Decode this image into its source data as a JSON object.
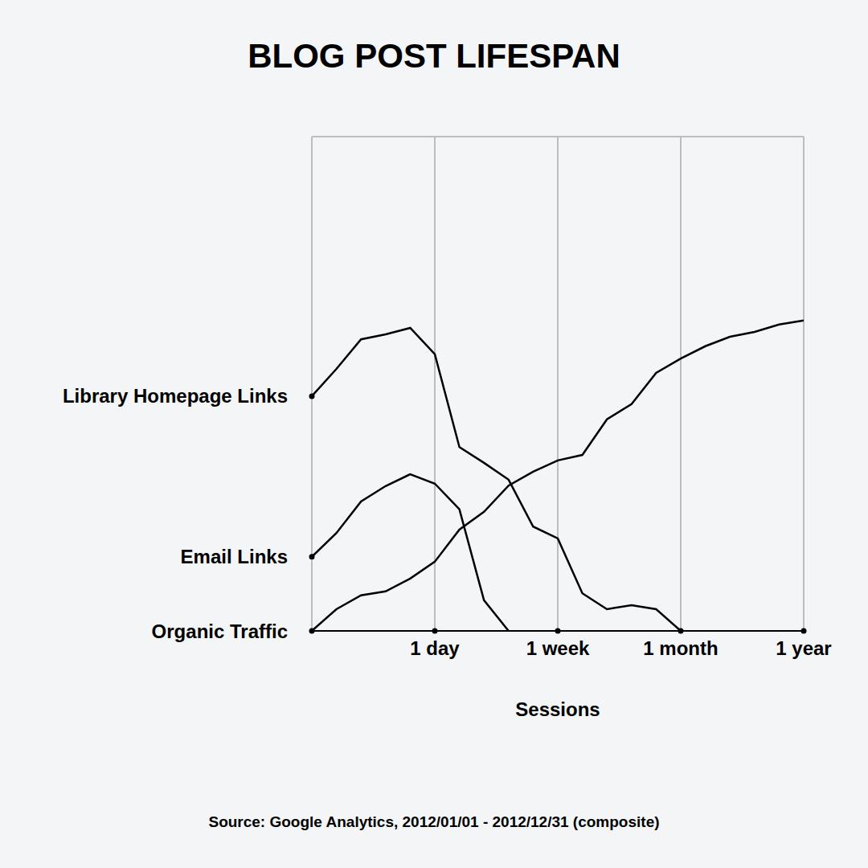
{
  "chart_data": {
    "type": "line",
    "title": "BLOG POST LIFESPAN",
    "x_label": "Sessions",
    "source": "Source: Google Analytics, 2012/01/01 - 2012/12/31 (composite)",
    "x": [
      0,
      0.2,
      0.4,
      0.6,
      0.8,
      1,
      1.2,
      1.4,
      1.6,
      1.8,
      2,
      2.2,
      2.4,
      2.6,
      2.8,
      3,
      3.2,
      3.4,
      3.6,
      3.8,
      4
    ],
    "xlim": [
      0,
      4
    ],
    "xticks": [
      {
        "value": 1,
        "label": "1 day"
      },
      {
        "value": 2,
        "label": "1 week"
      },
      {
        "value": 3,
        "label": "1 month"
      },
      {
        "value": 4,
        "label": "1 year"
      }
    ],
    "ylim": [
      0,
      100
    ],
    "yticks": [
      {
        "value": 0,
        "label": "Organic Traffic"
      },
      {
        "value": 15,
        "label": "Email Links"
      },
      {
        "value": 47.5,
        "label": "Library Homepage Links"
      }
    ],
    "grid": true,
    "series": [
      {
        "name": "Library Homepage Links",
        "color": "#000000",
        "values": [
          47.5,
          53,
          59,
          60,
          61.3,
          56,
          37.2,
          34,
          30.6,
          21.1,
          18.7,
          7.6,
          4.4,
          5.2,
          4.4,
          0,
          null,
          null,
          null,
          null,
          null
        ]
      },
      {
        "name": "Email Links",
        "color": "#000000",
        "values": [
          15,
          19.8,
          26.2,
          29.3,
          31.7,
          29.8,
          24.6,
          6.2,
          0,
          null,
          null,
          null,
          null,
          null,
          null,
          null,
          null,
          null,
          null,
          null,
          null
        ]
      },
      {
        "name": "Organic Traffic",
        "color": "#000000",
        "values": [
          0,
          4.4,
          7.2,
          8,
          10.6,
          14,
          20.5,
          24.1,
          29.4,
          32.2,
          34.5,
          35.6,
          42.8,
          45.9,
          52.2,
          55.1,
          57.6,
          59.5,
          60.5,
          62,
          62.8
        ]
      }
    ]
  }
}
